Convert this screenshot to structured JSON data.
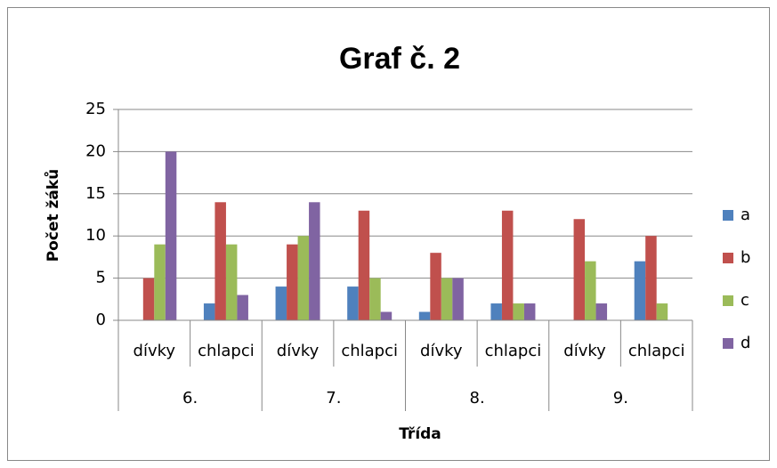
{
  "chart_data": {
    "type": "bar",
    "title": "Graf č. 2",
    "x_label": "Třída",
    "y_label": "Počet žáků",
    "categories": [
      "dívky",
      "chlapci",
      "dívky",
      "chlapci",
      "dívky",
      "chlapci",
      "dívky",
      "chlapci"
    ],
    "groups": [
      "6.",
      "7.",
      "8.",
      "9."
    ],
    "series": [
      {
        "name": "a",
        "color": "#4f81bd",
        "values": [
          0,
          2,
          4,
          4,
          1,
          2,
          0,
          7
        ]
      },
      {
        "name": "b",
        "color": "#c0504d",
        "values": [
          5,
          14,
          9,
          13,
          8,
          13,
          12,
          10
        ]
      },
      {
        "name": "c",
        "color": "#9bbb59",
        "values": [
          9,
          9,
          10,
          5,
          5,
          2,
          7,
          2
        ]
      },
      {
        "name": "d",
        "color": "#8064a2",
        "values": [
          20,
          3,
          14,
          1,
          5,
          2,
          2,
          0
        ]
      }
    ],
    "ylim": [
      0,
      25
    ],
    "yticks": [
      0,
      5,
      10,
      15,
      20,
      25
    ],
    "grid": true,
    "legend": "right"
  }
}
